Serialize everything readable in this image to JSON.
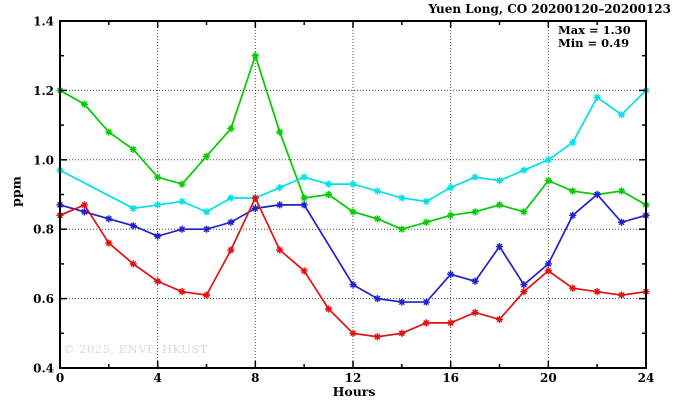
{
  "chart_data": {
    "type": "line",
    "title": "Yuen Long, CO 20200120–20200123",
    "xlabel": "Hours",
    "ylabel": "ppm",
    "xlim": [
      0,
      24
    ],
    "ylim": [
      0.4,
      1.4
    ],
    "x_tick_values": [
      0,
      4,
      8,
      12,
      16,
      20,
      24
    ],
    "x_tick_labels": [
      "0",
      "4",
      "8",
      "12",
      "16",
      "20",
      "24"
    ],
    "x_minor_tick_values": [
      2,
      6,
      10,
      14,
      18,
      22
    ],
    "y_tick_values": [
      0.4,
      0.6,
      0.8,
      1.0,
      1.2,
      1.4
    ],
    "y_tick_labels": [
      "0.4",
      "0.6",
      "0.8",
      "1.0",
      "1.2",
      "1.4"
    ],
    "y_minor_tick_values": [
      0.5,
      0.7,
      0.9,
      1.1,
      1.3
    ],
    "grid": {
      "x_at": [
        4,
        8,
        12,
        16,
        20
      ],
      "y_at": [
        0.6,
        0.8,
        1.0,
        1.2
      ],
      "style": "dotted"
    },
    "legend": "none",
    "marker": "asterisk",
    "annotations": {
      "max": "Max = 1.30",
      "min": "Min = 0.49"
    },
    "watermark": "© 2025, ENVF, HKUST",
    "x": [
      0,
      1,
      2,
      3,
      4,
      5,
      6,
      7,
      8,
      9,
      10,
      11,
      12,
      13,
      14,
      15,
      16,
      17,
      18,
      19,
      20,
      21,
      22,
      23,
      24
    ],
    "series": [
      {
        "name": "green-line",
        "color": "#00cc00",
        "values": [
          1.2,
          1.16,
          1.08,
          1.03,
          0.95,
          0.93,
          1.01,
          1.09,
          1.3,
          1.08,
          0.89,
          0.9,
          0.85,
          0.83,
          0.8,
          0.82,
          0.84,
          0.85,
          0.87,
          0.85,
          0.94,
          0.91,
          0.9,
          0.91,
          0.87
        ]
      },
      {
        "name": "cyan-line",
        "color": "#00e1e6",
        "values": [
          0.97,
          null,
          null,
          0.86,
          0.87,
          0.88,
          0.85,
          0.89,
          0.89,
          0.92,
          0.95,
          0.93,
          0.93,
          0.91,
          0.89,
          0.88,
          0.92,
          0.95,
          0.94,
          0.97,
          1.0,
          1.05,
          1.18,
          1.13,
          1.2
        ]
      },
      {
        "name": "blue-line",
        "color": "#2121cc",
        "values": [
          0.87,
          0.85,
          0.83,
          0.81,
          0.78,
          0.8,
          0.8,
          0.82,
          0.86,
          0.87,
          0.87,
          null,
          0.64,
          0.6,
          0.59,
          0.59,
          0.67,
          0.65,
          0.75,
          0.64,
          0.7,
          0.84,
          0.9,
          0.82,
          0.84
        ]
      },
      {
        "name": "red-line",
        "color": "#e01111",
        "values": [
          0.84,
          0.87,
          0.76,
          0.7,
          0.65,
          0.62,
          0.61,
          0.74,
          0.89,
          0.74,
          0.68,
          0.57,
          0.5,
          0.49,
          0.5,
          0.53,
          0.53,
          0.56,
          0.54,
          0.62,
          0.68,
          0.63,
          0.62,
          0.61,
          0.62
        ]
      }
    ]
  }
}
